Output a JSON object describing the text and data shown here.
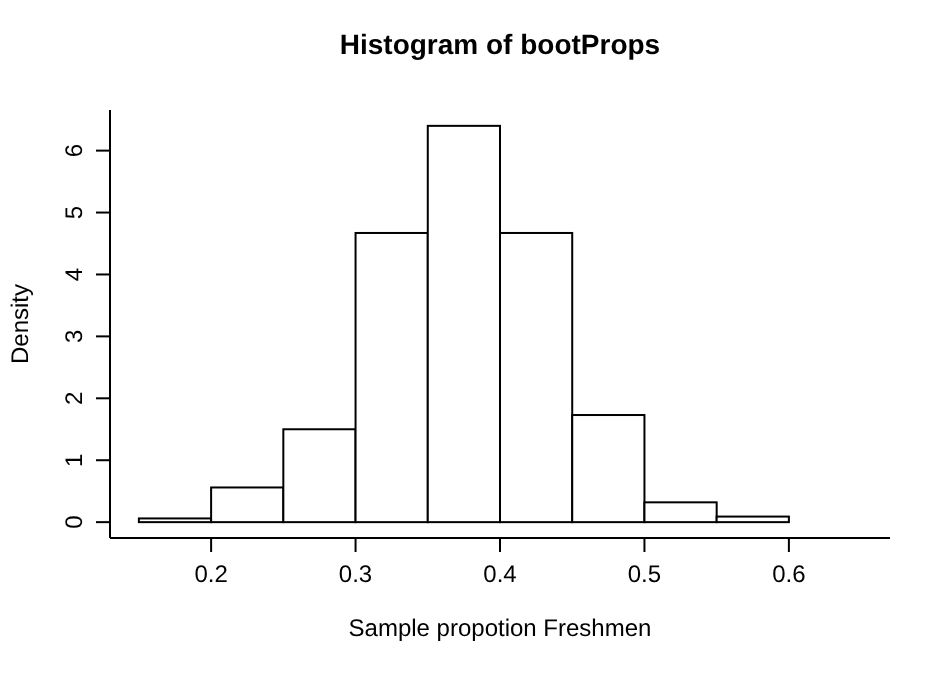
{
  "chart_data": {
    "type": "histogram",
    "title": "Histogram of bootProps",
    "xlabel": "Sample propotion Freshmen",
    "ylabel": "Density",
    "bins": [
      0.15,
      0.2,
      0.25,
      0.3,
      0.35,
      0.4,
      0.45,
      0.5,
      0.55,
      0.6,
      0.65
    ],
    "values": [
      0.06,
      0.56,
      1.5,
      4.67,
      6.4,
      4.67,
      1.73,
      0.32,
      0.09,
      0
    ],
    "color": "#ffffff",
    "xlim": [
      0.13,
      0.67
    ],
    "xticks": [
      0.2,
      0.3,
      0.4,
      0.5,
      0.6
    ],
    "ylim": [
      -0.256,
      6.656
    ],
    "yticks": [
      0,
      1,
      2,
      3,
      4,
      5,
      6
    ]
  }
}
